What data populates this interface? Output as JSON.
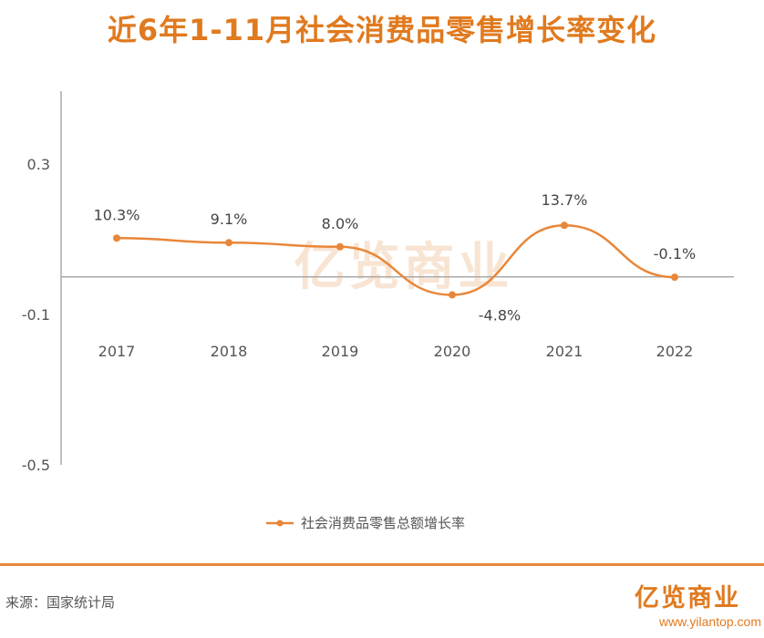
{
  "title": "近6年1-11月社会消费品零售增长率变化",
  "source": "来源：国家统计局",
  "brand": {
    "logo_text": "亿览商业",
    "website": "www.yilantop.com",
    "watermark_text": "亿览商业"
  },
  "colors": {
    "accent": "#e07a1f",
    "line": "#e8873a",
    "axis": "#aaaaaa",
    "text": "#555555",
    "watermark": "#f6dcc4"
  },
  "chart_data": {
    "type": "line",
    "title": "近6年1-11月社会消费品零售增长率变化",
    "categories": [
      "2017",
      "2018",
      "2019",
      "2020",
      "2021",
      "2022"
    ],
    "series": [
      {
        "name": "社会消费品零售总额增长率",
        "values": [
          0.103,
          0.091,
          0.08,
          -0.048,
          0.137,
          -0.001
        ],
        "labels": [
          "10.3%",
          "9.1%",
          "8.0%",
          "-4.8%",
          "13.7%",
          "-0.1%"
        ]
      }
    ],
    "y_ticks": [
      0.3,
      -0.1,
      -0.5
    ],
    "y_tick_labels": [
      "0.3",
      "-0.1",
      "-0.5"
    ],
    "ylim": [
      -0.5,
      0.5
    ],
    "zero_line": true,
    "smooth": true,
    "legend": "bottom-center"
  }
}
